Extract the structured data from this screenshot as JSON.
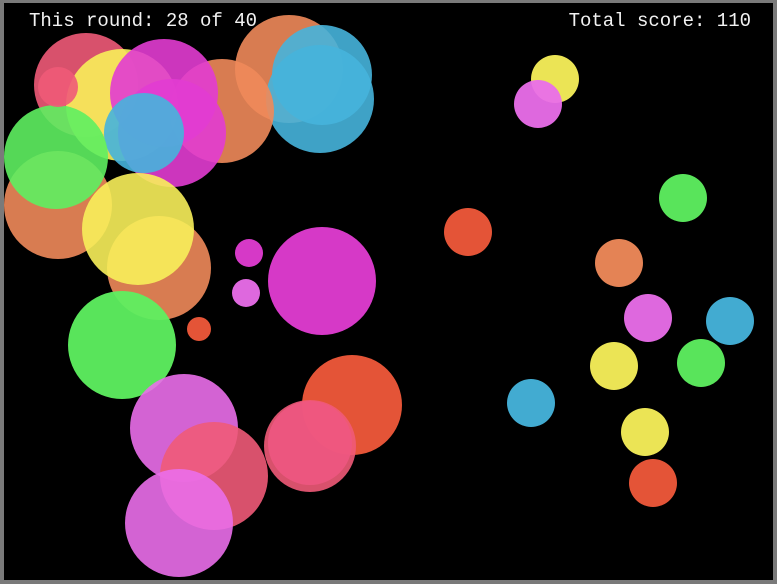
{
  "hud": {
    "round_text": "This round: 28 of 40",
    "score_text": "Total score: 110"
  },
  "palette": {
    "background": "#000000",
    "frame": "#7a7a7a",
    "hud_text": "#f2f2f2",
    "pink": "#f05a78",
    "magenta": "#e23cd2",
    "violet": "#ea6eea",
    "yellow": "#f8f05a",
    "green": "#5ef060",
    "orange": "#f08a5a",
    "red_orange": "#f0583a",
    "sky_blue": "#46b4dc"
  },
  "bubbles": {
    "cluster_left": [
      {
        "color": "#f05a78",
        "opacity": 0.9,
        "id": "b1"
      },
      {
        "color": "#f08a5a",
        "opacity": 0.9,
        "id": "b2"
      },
      {
        "color": "#46b4dc",
        "opacity": 0.9,
        "id": "b3"
      },
      {
        "color": "#46b4dc",
        "opacity": 0.9,
        "id": "b4"
      },
      {
        "color": "#f08a5a",
        "opacity": 0.9,
        "id": "b5"
      },
      {
        "color": "#f8f05a",
        "opacity": 0.9,
        "id": "b6"
      },
      {
        "color": "#e23cd2",
        "opacity": 0.9,
        "id": "b7"
      },
      {
        "color": "#e23cd2",
        "opacity": 0.9,
        "id": "b8"
      },
      {
        "color": "#46b4dc",
        "opacity": 0.9,
        "id": "b9"
      },
      {
        "color": "#f08a5a",
        "opacity": 0.9,
        "id": "b10"
      },
      {
        "color": "#f08a5a",
        "opacity": 0.9,
        "id": "b11"
      },
      {
        "color": "#5ef060",
        "opacity": 0.9,
        "id": "b12"
      },
      {
        "color": "#f8f05a",
        "opacity": 0.9,
        "id": "b13"
      },
      {
        "color": "#f05a78",
        "opacity": 0.9,
        "id": "b14"
      },
      {
        "color": "#e23cd2",
        "opacity": 0.95,
        "id": "b15"
      },
      {
        "color": "#ea6eea",
        "opacity": 0.95,
        "id": "b16"
      },
      {
        "color": "#f0583a",
        "opacity": 0.95,
        "id": "b17"
      },
      {
        "color": "#e23cd2",
        "opacity": 0.95,
        "id": "b18"
      },
      {
        "color": "#5ef060",
        "opacity": 0.95,
        "id": "b19"
      },
      {
        "color": "#f0583a",
        "opacity": 0.95,
        "id": "b20"
      },
      {
        "color": "#e23cd2",
        "opacity": 0.9,
        "id": "b21"
      },
      {
        "color": "#f05a78",
        "opacity": 0.9,
        "id": "b22"
      },
      {
        "color": "#ea6eea",
        "opacity": 0.9,
        "id": "b23"
      },
      {
        "color": "#f05a78",
        "opacity": 0.9,
        "id": "b24"
      },
      {
        "color": "#ea6eea",
        "opacity": 0.9,
        "id": "b25"
      }
    ],
    "scattered_right": [
      {
        "color": "#f8f05a",
        "opacity": 0.95,
        "id": "r1"
      },
      {
        "color": "#ea6eea",
        "opacity": 0.95,
        "id": "r2"
      },
      {
        "color": "#5ef060",
        "opacity": 0.95,
        "id": "r3"
      },
      {
        "color": "#f0583a",
        "opacity": 0.95,
        "id": "r4"
      },
      {
        "color": "#f08a5a",
        "opacity": 0.95,
        "id": "r5"
      },
      {
        "color": "#ea6eea",
        "opacity": 0.95,
        "id": "r6"
      },
      {
        "color": "#46b4dc",
        "opacity": 0.95,
        "id": "r7"
      },
      {
        "color": "#f8f05a",
        "opacity": 0.95,
        "id": "r8"
      },
      {
        "color": "#5ef060",
        "opacity": 0.95,
        "id": "r9"
      },
      {
        "color": "#46b4dc",
        "opacity": 0.95,
        "id": "r10"
      },
      {
        "color": "#f8f05a",
        "opacity": 0.95,
        "id": "r11"
      },
      {
        "color": "#f0583a",
        "opacity": 0.95,
        "id": "r12"
      }
    ]
  }
}
